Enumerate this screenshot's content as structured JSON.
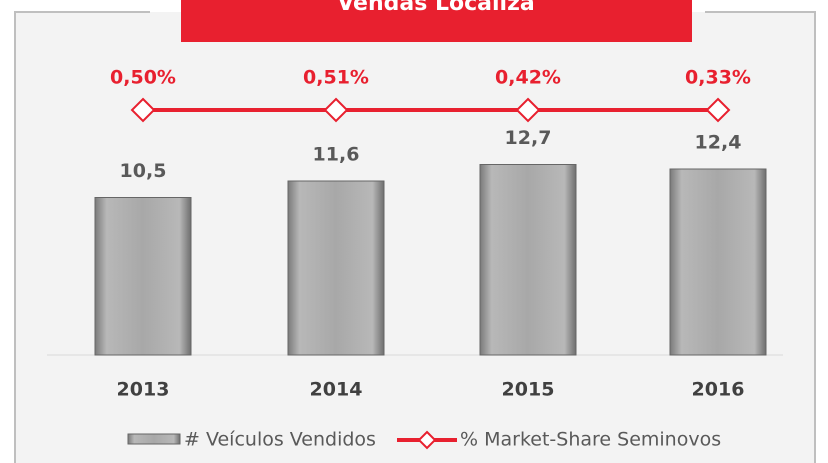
{
  "chart_data": {
    "type": "bar",
    "title": "Vendas Localiza",
    "categories": [
      "2013",
      "2014",
      "2015",
      "2016"
    ],
    "series": [
      {
        "name": "# Veículos Vendidos",
        "type": "bar",
        "color": "#a6a6a6",
        "values": [
          10.5,
          11.6,
          12.7,
          12.4
        ],
        "value_labels": [
          "10,5",
          "11,6",
          "12,7",
          "12,4"
        ]
      },
      {
        "name": "% Market-Share Seminovos",
        "type": "line",
        "color": "#e8202f",
        "values": [
          0.5,
          0.51,
          0.42,
          0.33
        ],
        "value_labels": [
          "0,50%",
          "0,51%",
          "0,42%",
          "0,33%"
        ]
      }
    ]
  }
}
